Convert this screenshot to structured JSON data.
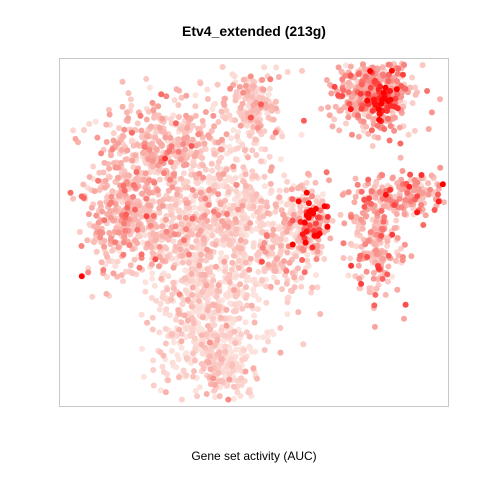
{
  "chart_data": {
    "type": "scatter",
    "title": "Etv4_extended (213g)",
    "xlabel": "Gene set activity (AUC)",
    "ylabel": "",
    "axes_shown": false,
    "grid": false,
    "legend": "none",
    "color_scale": {
      "low": "#fde3de",
      "mid": "#f8a09a",
      "high": "#ff0000"
    },
    "clusters": [
      {
        "name": "top-right",
        "cx": 0.4,
        "cy": 0.37,
        "sx": 0.06,
        "sy": 0.05,
        "n": 460,
        "level": 0.45
      },
      {
        "name": "top-right-hot",
        "cx": 0.43,
        "cy": 0.34,
        "sx": 0.02,
        "sy": 0.02,
        "n": 60,
        "level": 0.88
      },
      {
        "name": "upper-center",
        "cx": 0.05,
        "cy": 0.33,
        "sx": 0.04,
        "sy": 0.05,
        "n": 160,
        "level": 0.25
      },
      {
        "name": "upper-left",
        "cx": -0.22,
        "cy": 0.23,
        "sx": 0.1,
        "sy": 0.07,
        "n": 380,
        "level": 0.32
      },
      {
        "name": "left",
        "cx": -0.33,
        "cy": 0.03,
        "sx": 0.06,
        "sy": 0.08,
        "n": 380,
        "level": 0.35
      },
      {
        "name": "center",
        "cx": -0.01,
        "cy": 0.02,
        "sx": 0.08,
        "sy": 0.11,
        "n": 520,
        "level": 0.12
      },
      {
        "name": "center-left",
        "cx": -0.17,
        "cy": 0.0,
        "sx": 0.06,
        "sy": 0.08,
        "n": 220,
        "level": 0.22
      },
      {
        "name": "center-right",
        "cx": 0.17,
        "cy": -0.02,
        "sx": 0.05,
        "sy": 0.07,
        "n": 230,
        "level": 0.28
      },
      {
        "name": "hot-center",
        "cx": 0.23,
        "cy": 0.01,
        "sx": 0.02,
        "sy": 0.035,
        "n": 70,
        "level": 0.9
      },
      {
        "name": "right",
        "cx": 0.5,
        "cy": 0.09,
        "sx": 0.07,
        "sy": 0.03,
        "n": 190,
        "level": 0.48
      },
      {
        "name": "right-lower",
        "cx": 0.4,
        "cy": -0.04,
        "sx": 0.04,
        "sy": 0.08,
        "n": 200,
        "level": 0.38
      },
      {
        "name": "bottom",
        "cx": -0.09,
        "cy": -0.26,
        "sx": 0.08,
        "sy": 0.1,
        "n": 460,
        "level": 0.08
      },
      {
        "name": "bottom-tail",
        "cx": -0.03,
        "cy": -0.38,
        "sx": 0.04,
        "sy": 0.04,
        "n": 120,
        "level": 0.06
      }
    ]
  }
}
